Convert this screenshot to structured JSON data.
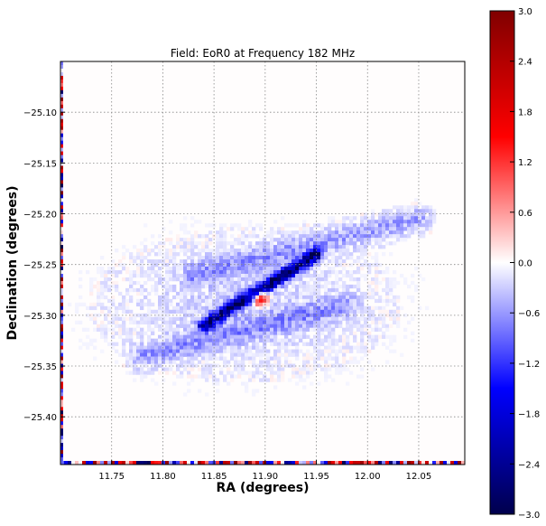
{
  "chart_data": {
    "type": "heatmap",
    "title": "Field: EoR0 at Frequency 182 MHz",
    "xlabel": "RA (degrees)",
    "ylabel": "Declination (degrees)",
    "xlim": [
      11.7,
      12.095
    ],
    "ylim": [
      -25.447,
      -25.05
    ],
    "xticks": [
      11.75,
      11.8,
      11.85,
      11.9,
      11.95,
      12.0,
      12.05
    ],
    "xtick_labels": [
      "11.75",
      "11.80",
      "11.85",
      "11.90",
      "11.95",
      "12.00",
      "12.05"
    ],
    "yticks": [
      -25.1,
      -25.15,
      -25.2,
      -25.25,
      -25.3,
      -25.35,
      -25.4
    ],
    "ytick_labels": [
      "−25.10",
      "−25.15",
      "−25.20",
      "−25.25",
      "−25.30",
      "−25.35",
      "−25.40"
    ],
    "grid": true,
    "colorbar": {
      "vmin": -3.0,
      "vmax": 3.0,
      "colormap": "seismic",
      "ticks": [
        -3.0,
        -2.4,
        -1.8,
        -1.2,
        -0.6,
        0.0,
        0.6,
        1.2,
        1.8,
        2.4,
        3.0
      ],
      "tick_labels": [
        "−3.0",
        "−2.4",
        "−1.8",
        "−1.2",
        "−0.6",
        "0.0",
        "0.6",
        "1.2",
        "1.8",
        "2.4",
        "3.0"
      ],
      "colors": [
        "#00004c",
        "#0000ff",
        "#ffffff",
        "#ff0000",
        "#800000"
      ]
    },
    "features": [
      {
        "kind": "strong-diagonal-ridge",
        "ra_start": 11.84,
        "dec_start": -25.31,
        "ra_end": 11.95,
        "dec_end": -25.24,
        "value": -2.6
      },
      {
        "kind": "core-positive",
        "ra": 11.895,
        "dec": -25.283,
        "value": 2.4
      },
      {
        "kind": "faint-band-upper",
        "ra_start": 11.83,
        "dec_start": -25.26,
        "ra_end": 12.05,
        "dec_end": -25.205,
        "value": -0.5
      },
      {
        "kind": "faint-band-lower",
        "ra_start": 11.78,
        "dec_start": -25.34,
        "ra_end": 11.98,
        "dec_end": -25.29,
        "value": -0.5
      },
      {
        "kind": "diffuse-halo",
        "ra": 11.88,
        "dec": -25.29,
        "value": -0.25
      }
    ]
  }
}
